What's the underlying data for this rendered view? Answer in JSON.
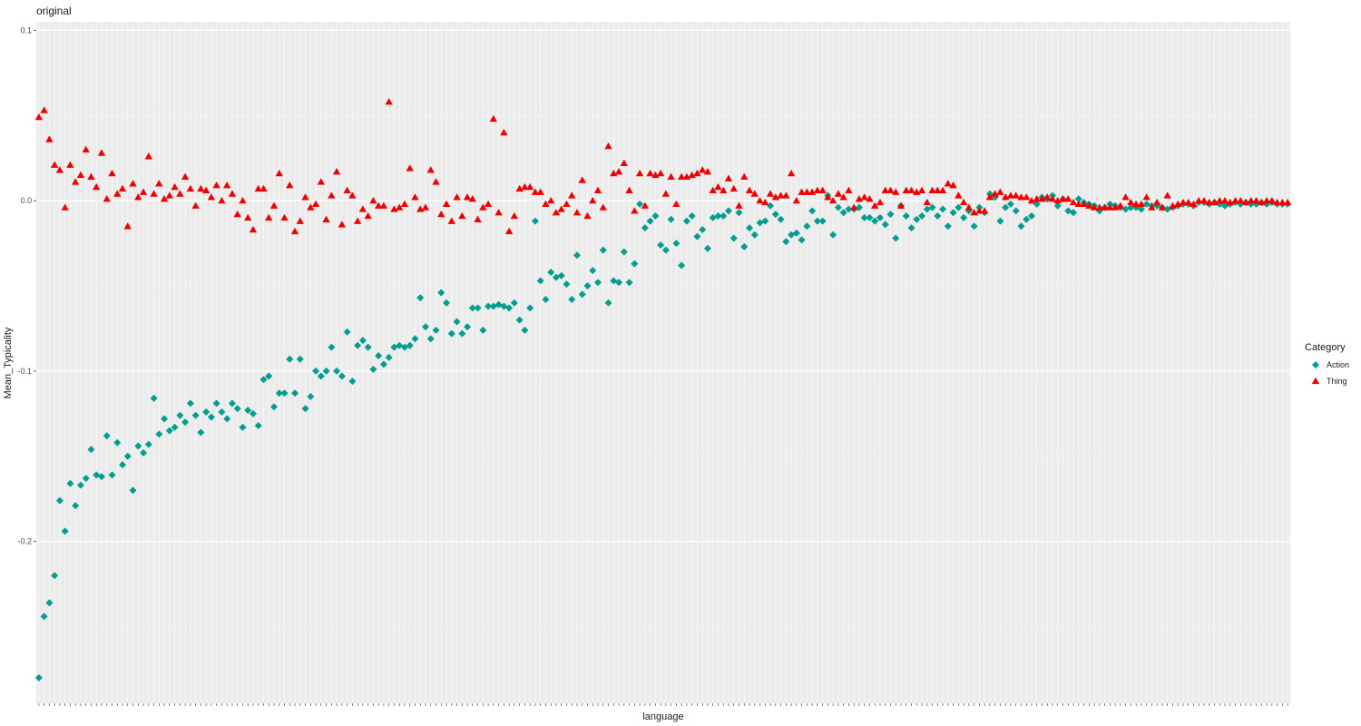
{
  "chart_data": {
    "type": "scatter",
    "title": "original",
    "xlabel": "language",
    "ylabel": "Mean_Typicality",
    "ylim": [
      -0.295,
      0.105
    ],
    "yticks": [
      0.1,
      0.0,
      -0.1,
      -0.2
    ],
    "ytick_labels": [
      "0.1",
      "0.0",
      "-0.1",
      "-0.2"
    ],
    "x_categories_count": 240,
    "grid": true,
    "legend": {
      "title": "Category",
      "placement": "right",
      "entries": [
        {
          "label": "Action",
          "color": "#009E8F",
          "shape": "diamond"
        },
        {
          "label": "Thing",
          "color": "#EE0000",
          "shape": "triangle"
        }
      ]
    },
    "series": [
      {
        "name": "Action",
        "color": "#009E8F",
        "shape": "diamond",
        "values": [
          -0.28,
          -0.244,
          -0.236,
          -0.22,
          -0.176,
          -0.194,
          -0.166,
          -0.179,
          -0.167,
          -0.163,
          -0.146,
          -0.161,
          -0.162,
          -0.138,
          -0.161,
          -0.142,
          -0.155,
          -0.15,
          -0.17,
          -0.144,
          -0.148,
          -0.143,
          -0.116,
          -0.137,
          -0.128,
          -0.135,
          -0.133,
          -0.126,
          -0.13,
          -0.119,
          -0.126,
          -0.136,
          -0.124,
          -0.127,
          -0.119,
          -0.124,
          -0.128,
          -0.119,
          -0.122,
          -0.133,
          -0.123,
          -0.125,
          -0.132,
          -0.105,
          -0.103,
          -0.121,
          -0.113,
          -0.113,
          -0.093,
          -0.113,
          -0.093,
          -0.122,
          -0.115,
          -0.1,
          -0.103,
          -0.1,
          -0.086,
          -0.1,
          -0.103,
          -0.077,
          -0.106,
          -0.085,
          -0.082,
          -0.086,
          -0.099,
          -0.091,
          -0.096,
          -0.092,
          -0.086,
          -0.085,
          -0.086,
          -0.085,
          -0.081,
          -0.057,
          -0.074,
          -0.081,
          -0.076,
          -0.054,
          -0.06,
          -0.078,
          -0.071,
          -0.078,
          -0.074,
          -0.063,
          -0.063,
          -0.076,
          -0.062,
          -0.062,
          -0.061,
          -0.062,
          -0.063,
          -0.06,
          -0.07,
          -0.076,
          -0.063,
          -0.012,
          -0.047,
          -0.058,
          -0.042,
          -0.045,
          -0.044,
          -0.049,
          -0.058,
          -0.032,
          -0.055,
          -0.05,
          -0.041,
          -0.048,
          -0.029,
          -0.06,
          -0.047,
          -0.048,
          -0.03,
          -0.048,
          -0.037,
          -0.002,
          -0.016,
          -0.012,
          -0.009,
          -0.026,
          -0.029,
          -0.011,
          -0.025,
          -0.038,
          -0.012,
          -0.009,
          -0.021,
          -0.017,
          -0.028,
          -0.01,
          -0.009,
          -0.009,
          -0.006,
          -0.022,
          -0.007,
          -0.027,
          -0.016,
          -0.02,
          -0.013,
          -0.012,
          -0.003,
          -0.008,
          -0.011,
          -0.024,
          -0.02,
          -0.019,
          -0.023,
          -0.015,
          -0.006,
          -0.012,
          -0.012,
          0.003,
          -0.02,
          -0.004,
          -0.007,
          -0.005,
          -0.005,
          -0.004,
          -0.01,
          -0.01,
          -0.012,
          -0.01,
          -0.014,
          -0.008,
          -0.022,
          -0.003,
          -0.009,
          -0.016,
          -0.011,
          -0.009,
          -0.005,
          -0.004,
          -0.009,
          -0.005,
          -0.015,
          -0.007,
          -0.004,
          -0.01,
          -0.006,
          -0.015,
          -0.004,
          -0.007,
          0.004,
          0.002,
          -0.012,
          -0.004,
          -0.002,
          -0.006,
          -0.015,
          -0.011,
          -0.009,
          -0.002,
          0.002,
          0.001,
          0.003,
          -0.003,
          0.001,
          -0.006,
          -0.007,
          0.001,
          -0.001,
          -0.002,
          -0.003,
          -0.006,
          -0.004,
          -0.002,
          -0.003,
          -0.004,
          -0.005,
          -0.004,
          -0.004,
          -0.005,
          -0.002,
          -0.003,
          -0.003,
          -0.004,
          -0.005,
          -0.004,
          -0.003,
          -0.002,
          -0.002,
          -0.003,
          -0.001,
          -0.001,
          -0.002,
          -0.001,
          -0.002,
          -0.003,
          -0.002,
          -0.001,
          -0.002,
          -0.001,
          -0.002,
          -0.002,
          -0.001,
          -0.002,
          -0.001,
          -0.002,
          -0.002,
          -0.002
        ]
      },
      {
        "name": "Thing",
        "color": "#EE0000",
        "shape": "triangle",
        "values": [
          0.049,
          0.053,
          0.036,
          0.021,
          0.018,
          -0.004,
          0.021,
          0.011,
          0.015,
          0.03,
          0.014,
          0.008,
          0.028,
          0.001,
          0.016,
          0.004,
          0.007,
          -0.015,
          0.01,
          0.002,
          0.005,
          0.026,
          0.004,
          0.01,
          0.001,
          0.003,
          0.008,
          0.004,
          0.014,
          0.007,
          -0.003,
          0.007,
          0.006,
          0.002,
          0.009,
          0.0,
          0.009,
          0.004,
          -0.008,
          0.0,
          -0.01,
          -0.017,
          0.007,
          0.007,
          -0.01,
          -0.003,
          0.016,
          -0.01,
          0.009,
          -0.018,
          -0.012,
          0.002,
          -0.004,
          -0.002,
          0.011,
          -0.011,
          0.003,
          0.017,
          -0.014,
          0.006,
          0.003,
          -0.012,
          -0.005,
          -0.009,
          0.0,
          -0.003,
          -0.003,
          0.058,
          -0.005,
          -0.004,
          -0.002,
          0.019,
          0.002,
          -0.005,
          -0.004,
          0.018,
          0.011,
          -0.008,
          -0.002,
          -0.012,
          0.002,
          -0.009,
          0.002,
          0.001,
          -0.011,
          -0.004,
          -0.002,
          0.048,
          -0.007,
          0.04,
          -0.018,
          -0.009,
          0.007,
          0.008,
          0.008,
          0.005,
          0.005,
          -0.002,
          0.0,
          -0.007,
          -0.005,
          -0.002,
          0.003,
          -0.007,
          0.012,
          -0.009,
          0.0,
          0.006,
          -0.004,
          0.032,
          0.016,
          0.017,
          0.022,
          0.006,
          -0.006,
          0.016,
          -0.003,
          0.016,
          0.015,
          0.016,
          0.004,
          0.014,
          -0.002,
          0.014,
          0.014,
          0.015,
          0.016,
          0.018,
          0.017,
          0.006,
          0.008,
          0.006,
          0.013,
          0.007,
          -0.003,
          0.014,
          0.006,
          0.004,
          0.0,
          -0.001,
          0.004,
          0.002,
          0.003,
          0.003,
          0.016,
          0.0,
          0.005,
          0.005,
          0.005,
          0.006,
          0.006,
          0.002,
          0.0,
          0.004,
          0.002,
          0.006,
          -0.004,
          0.001,
          0.002,
          0.001,
          -0.003,
          -0.001,
          0.006,
          0.006,
          0.005,
          -0.003,
          0.006,
          0.006,
          0.005,
          0.006,
          -0.001,
          0.006,
          0.006,
          0.006,
          0.01,
          0.009,
          0.003,
          -0.001,
          -0.004,
          -0.007,
          -0.006,
          -0.006,
          0.002,
          0.004,
          0.005,
          0.002,
          0.003,
          0.003,
          0.002,
          0.002,
          0.0,
          0.001,
          0.001,
          0.002,
          0.001,
          0.0,
          0.001,
          0.001,
          -0.001,
          -0.002,
          -0.002,
          -0.003,
          -0.004,
          -0.004,
          -0.004,
          -0.004,
          -0.004,
          -0.003,
          0.002,
          -0.001,
          -0.002,
          -0.002,
          0.002,
          -0.004,
          -0.001,
          -0.004,
          0.003,
          -0.003,
          -0.002,
          -0.001,
          -0.001,
          -0.002,
          0.0,
          0.0,
          -0.001,
          -0.001,
          0.0,
          0.0,
          -0.001,
          0.0,
          0.0,
          -0.001,
          0.0,
          0.0,
          -0.001,
          0.0,
          0.0,
          -0.001,
          -0.001,
          -0.001
        ]
      }
    ]
  }
}
